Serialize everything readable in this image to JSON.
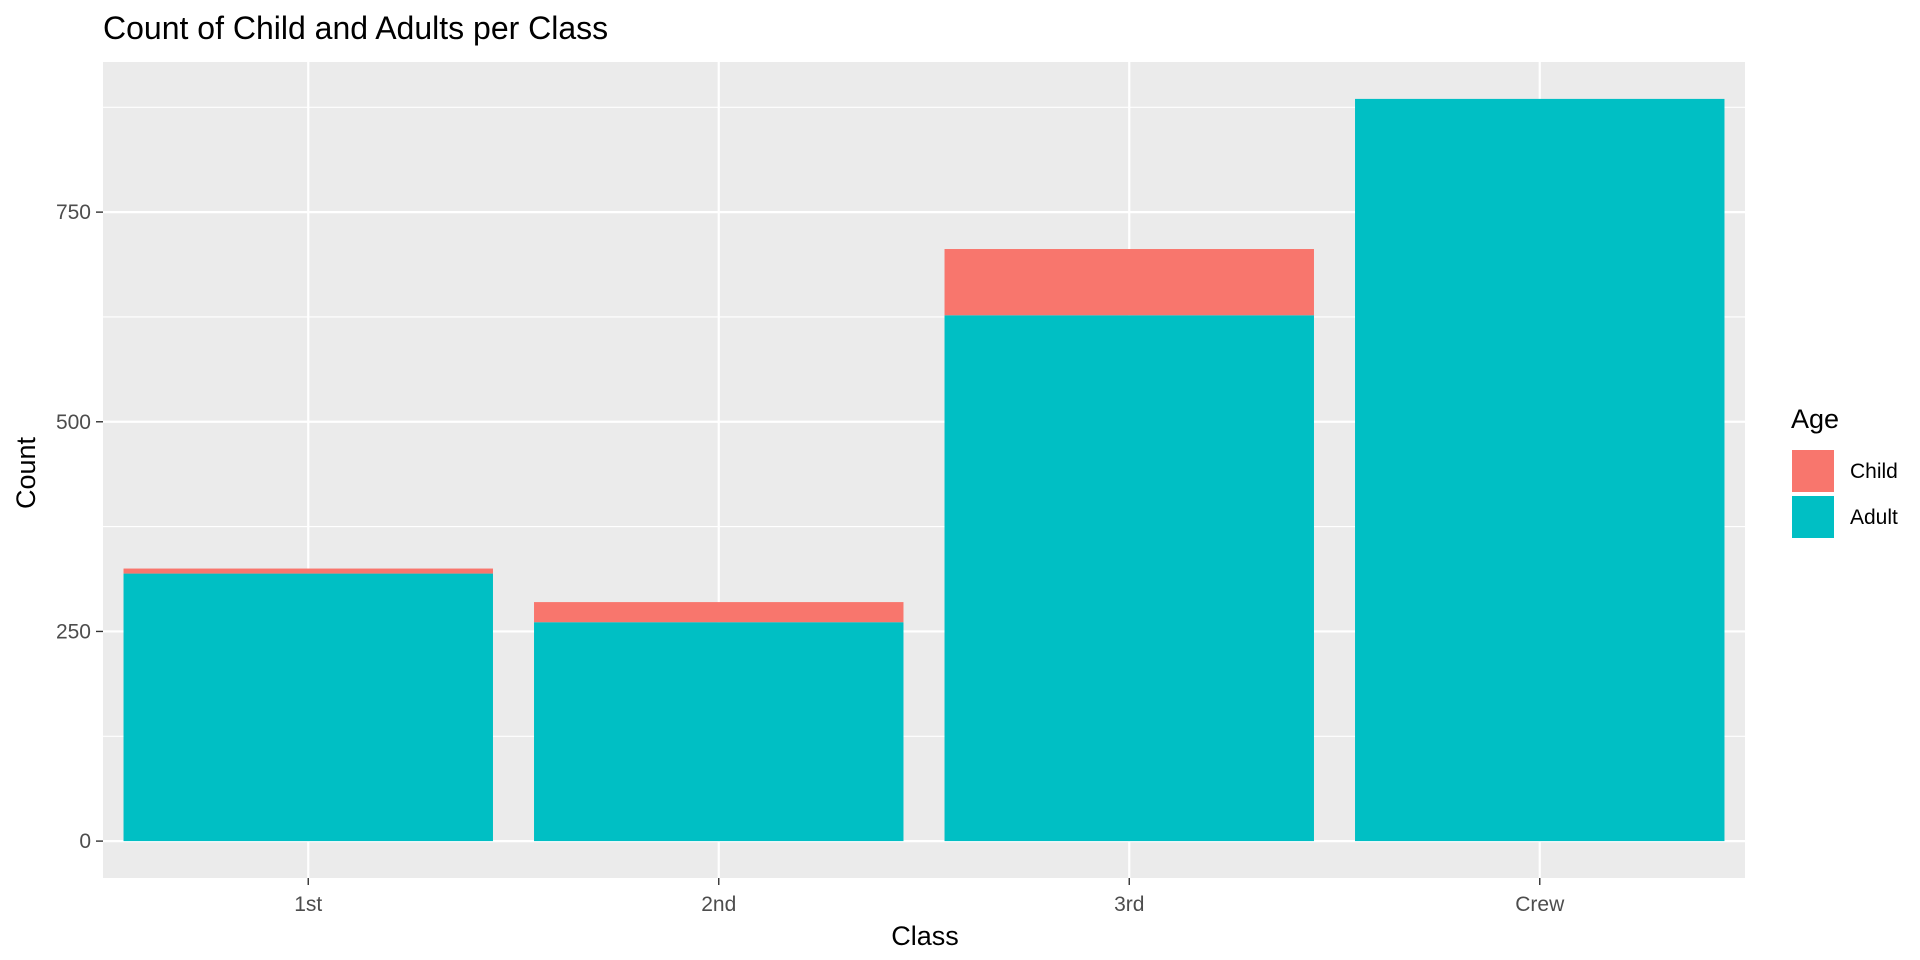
{
  "chart_data": {
    "type": "bar",
    "stacked": true,
    "title": "Count of Child and Adults per Class",
    "xlabel": "Class",
    "ylabel": "Count",
    "categories": [
      "1st",
      "2nd",
      "3rd",
      "Crew"
    ],
    "series": [
      {
        "name": "Child",
        "values": [
          6,
          24,
          79,
          0
        ],
        "color": "#F8766D"
      },
      {
        "name": "Adult",
        "values": [
          319,
          261,
          627,
          885
        ],
        "color": "#00BFC4"
      }
    ],
    "yticks": [
      0,
      250,
      500,
      750
    ],
    "ytick_labels": [
      "0",
      "250",
      "500",
      "750"
    ],
    "ylim": [
      -44,
      929
    ],
    "grid": true,
    "panel_background": "#EBEBEB",
    "grid_color": "#FFFFFF",
    "legend": {
      "title": "Age",
      "placement": "right",
      "entries": [
        "Child",
        "Adult"
      ]
    }
  }
}
